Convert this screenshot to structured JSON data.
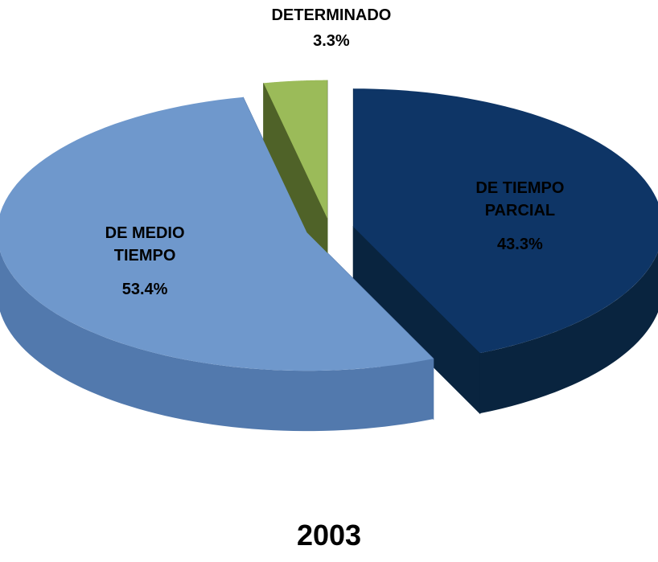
{
  "chart_data": {
    "type": "pie",
    "title": "2003",
    "categories": [
      "DE TIEMPO PARCIAL",
      "DE MEDIO TIEMPO",
      "POR OBRA O PROYECTO DETERMINADO"
    ],
    "values": [
      43.3,
      53.4,
      3.3
    ],
    "value_labels": [
      "43.3%",
      "53.4%",
      "3.3%"
    ],
    "colors": [
      "#0e3566",
      "#6f98cc",
      "#9bbb59"
    ],
    "side_colors": [
      "#09243f",
      "#5279ad",
      "#4f6228"
    ]
  }
}
